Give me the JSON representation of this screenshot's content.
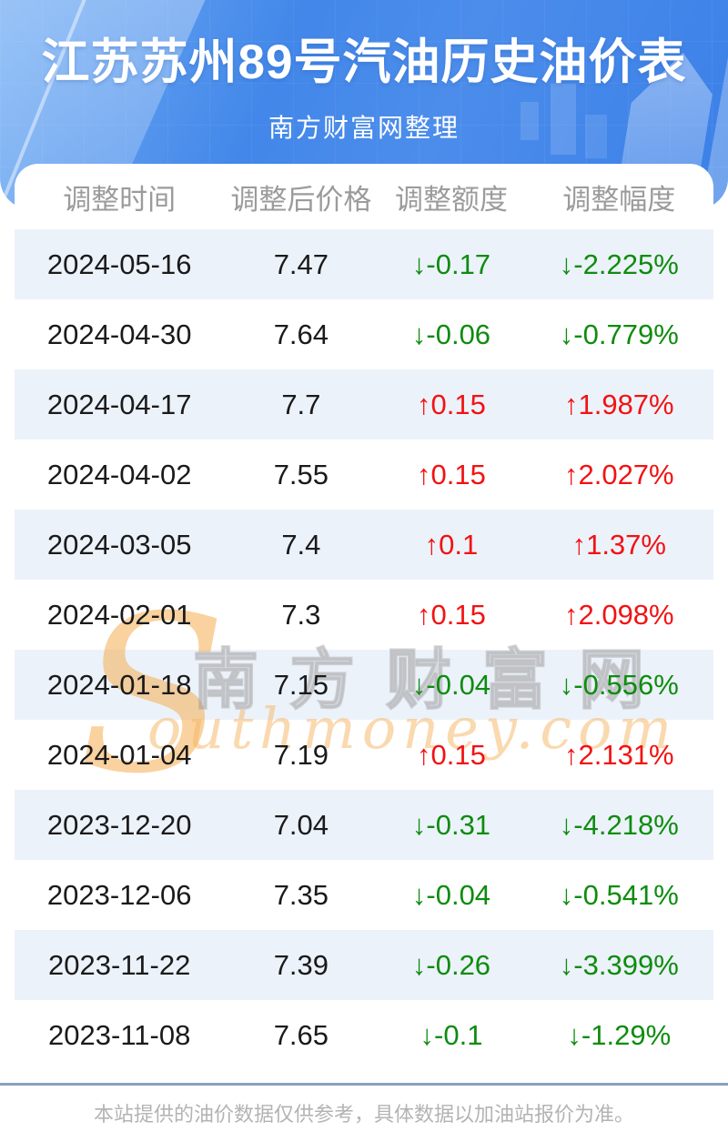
{
  "header": {
    "title": "江苏苏州89号汽油历史油价表",
    "subtitle": "南方财富网整理"
  },
  "table": {
    "columns": [
      "调整时间",
      "调整后价格",
      "调整额度",
      "调整幅度"
    ],
    "arrow_up": "↑",
    "arrow_down": "↓",
    "rows": [
      {
        "date": "2024-05-16",
        "price": "7.47",
        "change": "-0.17",
        "percent": "-2.225%",
        "dir": "down"
      },
      {
        "date": "2024-04-30",
        "price": "7.64",
        "change": "-0.06",
        "percent": "-0.779%",
        "dir": "down"
      },
      {
        "date": "2024-04-17",
        "price": "7.7",
        "change": "0.15",
        "percent": "1.987%",
        "dir": "up"
      },
      {
        "date": "2024-04-02",
        "price": "7.55",
        "change": "0.15",
        "percent": "2.027%",
        "dir": "up"
      },
      {
        "date": "2024-03-05",
        "price": "7.4",
        "change": "0.1",
        "percent": "1.37%",
        "dir": "up"
      },
      {
        "date": "2024-02-01",
        "price": "7.3",
        "change": "0.15",
        "percent": "2.098%",
        "dir": "up"
      },
      {
        "date": "2024-01-18",
        "price": "7.15",
        "change": "-0.04",
        "percent": "-0.556%",
        "dir": "down"
      },
      {
        "date": "2024-01-04",
        "price": "7.19",
        "change": "0.15",
        "percent": "2.131%",
        "dir": "up"
      },
      {
        "date": "2023-12-20",
        "price": "7.04",
        "change": "-0.31",
        "percent": "-4.218%",
        "dir": "down"
      },
      {
        "date": "2023-12-06",
        "price": "7.35",
        "change": "-0.04",
        "percent": "-0.541%",
        "dir": "down"
      },
      {
        "date": "2023-11-22",
        "price": "7.39",
        "change": "-0.26",
        "percent": "-3.399%",
        "dir": "down"
      },
      {
        "date": "2023-11-08",
        "price": "7.65",
        "change": "-0.1",
        "percent": "-1.29%",
        "dir": "down"
      }
    ]
  },
  "watermark": {
    "initial": "S",
    "cn": "南方财富网",
    "en": "outhmoney.com"
  },
  "footer": {
    "note": "本站提供的油价数据仅供参考，具体数据以加油站报价为准。"
  },
  "colors": {
    "up_red": "#f21212",
    "down_green": "#0e8c0e",
    "banner_blue": "#4287e9",
    "stripe_blue": "#ecf2fa",
    "divider_blue_gray": "#89a1bc",
    "header_label_gray": "#9b9b9b",
    "watermark_orange": "#f6ad50"
  }
}
